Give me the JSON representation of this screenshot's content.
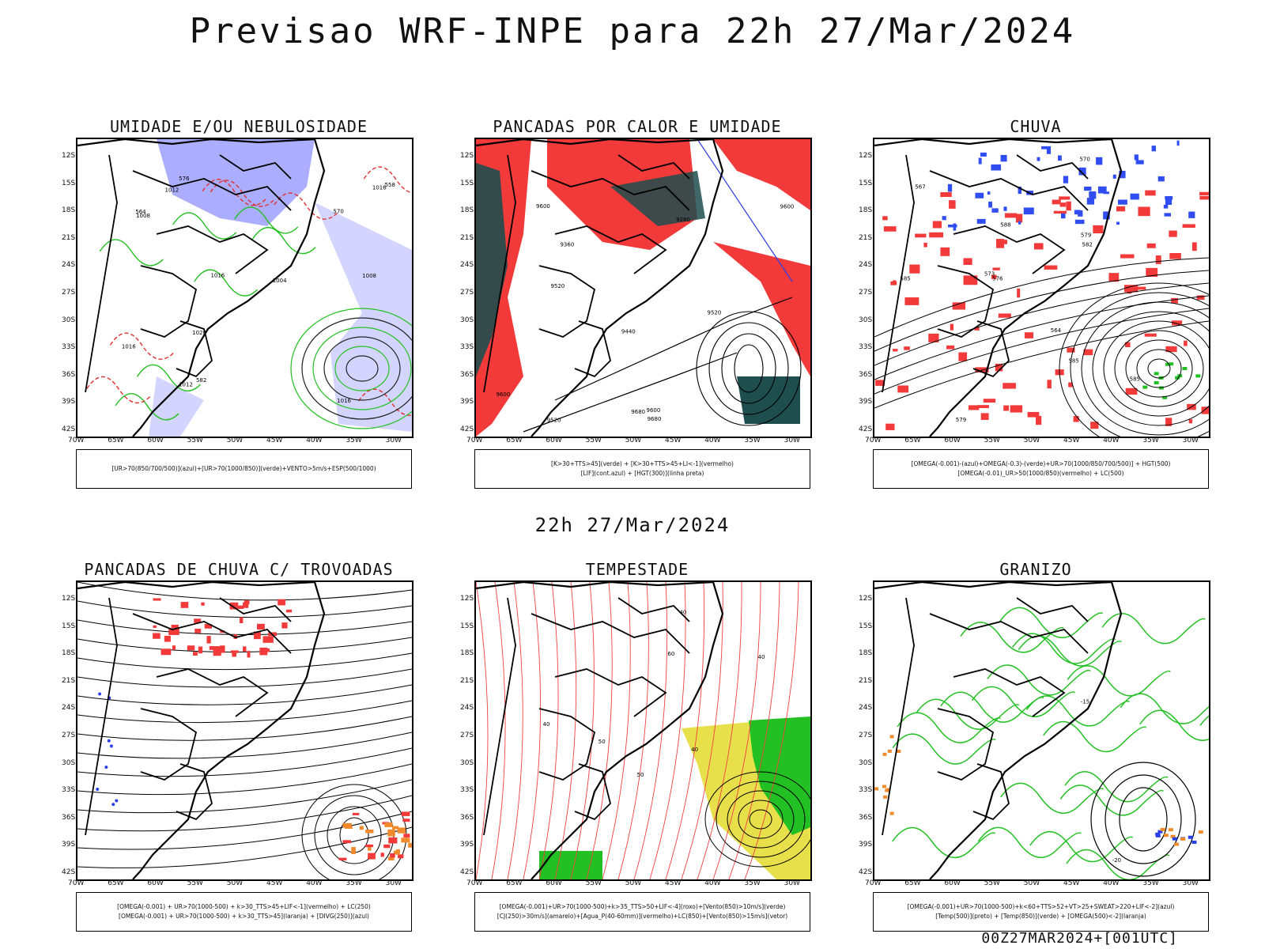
{
  "header": {
    "title": "Previsao WRF-INPE  para 22h 27/Mar/2024"
  },
  "middle": {
    "label": "22h 27/Mar/2024"
  },
  "footer": {
    "label": "00Z27MAR2024+[001UTC]"
  },
  "axes": {
    "lat": [
      "12S",
      "15S",
      "18S",
      "21S",
      "24S",
      "27S",
      "30S",
      "33S",
      "36S",
      "39S",
      "42S"
    ],
    "lon": [
      "70W",
      "65W",
      "60W",
      "55W",
      "50W",
      "45W",
      "40W",
      "35W",
      "30W"
    ]
  },
  "panels": [
    {
      "id": "umidade",
      "title": "UMIDADE E/OU NEBULOSIDADE",
      "legend": [
        "[UR>70(850/700/500)](azul)+[UR>70(1000/850)](verde)+VENTO>5m/s+ESP(500/1000)"
      ],
      "labels": [
        "1012",
        "1008",
        "1016",
        "1016",
        "1016",
        "1008",
        "1004",
        "1012",
        "1020",
        "1016",
        "570",
        "576",
        "564",
        "558",
        "582"
      ],
      "colors": {
        "fill1": "#8f93ff",
        "fill2": "#c8caff",
        "line1": "#22c022",
        "line2": "#e03030"
      }
    },
    {
      "id": "pancadas-calor",
      "title": "PANCADAS POR CALOR E UMIDADE",
      "legend": [
        "[K>30+TTS>45](verde) + [K>30+TTS>45+LI<-1](vermelho)",
        "[LIF](cont.azul) + [HGT(300)](linha preta)"
      ],
      "labels": [
        "9680",
        "9680",
        "9600",
        "9600",
        "9520",
        "9360",
        "9280",
        "9520",
        "9440",
        "9600",
        "9520",
        "9600"
      ],
      "colors": {
        "fill1": "#f23a3a",
        "fill2": "#1e4e4e",
        "line1": "#2b3fe8",
        "line2": "#000000"
      }
    },
    {
      "id": "chuva",
      "title": "CHUVA",
      "legend": [
        "[OMEGA(-0.001)-(azul)+OMEGA(-0.3)-(verde)+UR>70(1000/850/700/500)] + HGT(500)",
        "[OMEGA(-0.01)_UR>50(1000/850)(vermelho) + LC(500)"
      ],
      "labels": [
        "585",
        "585",
        "582",
        "579",
        "576",
        "573",
        "570",
        "567",
        "564",
        "588",
        "585",
        "579"
      ],
      "colors": {
        "fill1": "#f23a3a",
        "fill2": "#2f4df0",
        "line1": "#22c022",
        "line2": "#000000"
      }
    },
    {
      "id": "pancadas-trovoadas",
      "title": "PANCADAS DE CHUVA C/ TROVOADAS",
      "legend": [
        "[OMEGA(-0.001) + UR>70(1000-500) + k>30_TTS>45+LIF<-1](vermelho) + LC(250)",
        "[OMEGA(-0.001) + UR>70(1000-500) + k>30_TTS>45](laranja) + [DIVG(250)](azul)"
      ],
      "labels": [],
      "colors": {
        "fill1": "#f23a3a",
        "fill2": "#f08a2a",
        "line1": "#2b3fe8",
        "line2": "#000000"
      }
    },
    {
      "id": "tempestade",
      "title": "TEMPESTADE",
      "legend": [
        "[OMEGA(-0.001)+UR>70(1000-500)+k>35_TTS>50+LIF<-4](roxo)+[Vento(850)>10m/s](verde)",
        "[CJ(250)>30m/s](amarelo)+[Agua_P(40-60mm)](vermelho)+LC(850)+[Vento(850)>15m/s](vetor)"
      ],
      "labels": [
        "50",
        "40",
        "40",
        "40",
        "60",
        "50",
        "40"
      ],
      "colors": {
        "fill1": "#e8e04a",
        "fill2": "#22c022",
        "line1": "#f04040",
        "line2": "#000000"
      }
    },
    {
      "id": "granizo",
      "title": "GRANIZO",
      "legend": [
        "[OMEGA(-0.001)+UR>70(1000-500)+k<60+TTS>52+VT>25+SWEAT>220+LIF<-2](azul)",
        "[Temp(500)](preto) + [Temp(850)](verde) + [OMEGA(500)<-2](laranja)"
      ],
      "labels": [
        "-15",
        "-20"
      ],
      "colors": {
        "fill1": "#f08a2a",
        "fill2": "#2b3fe8",
        "line1": "#22c022",
        "line2": "#000000"
      }
    }
  ]
}
